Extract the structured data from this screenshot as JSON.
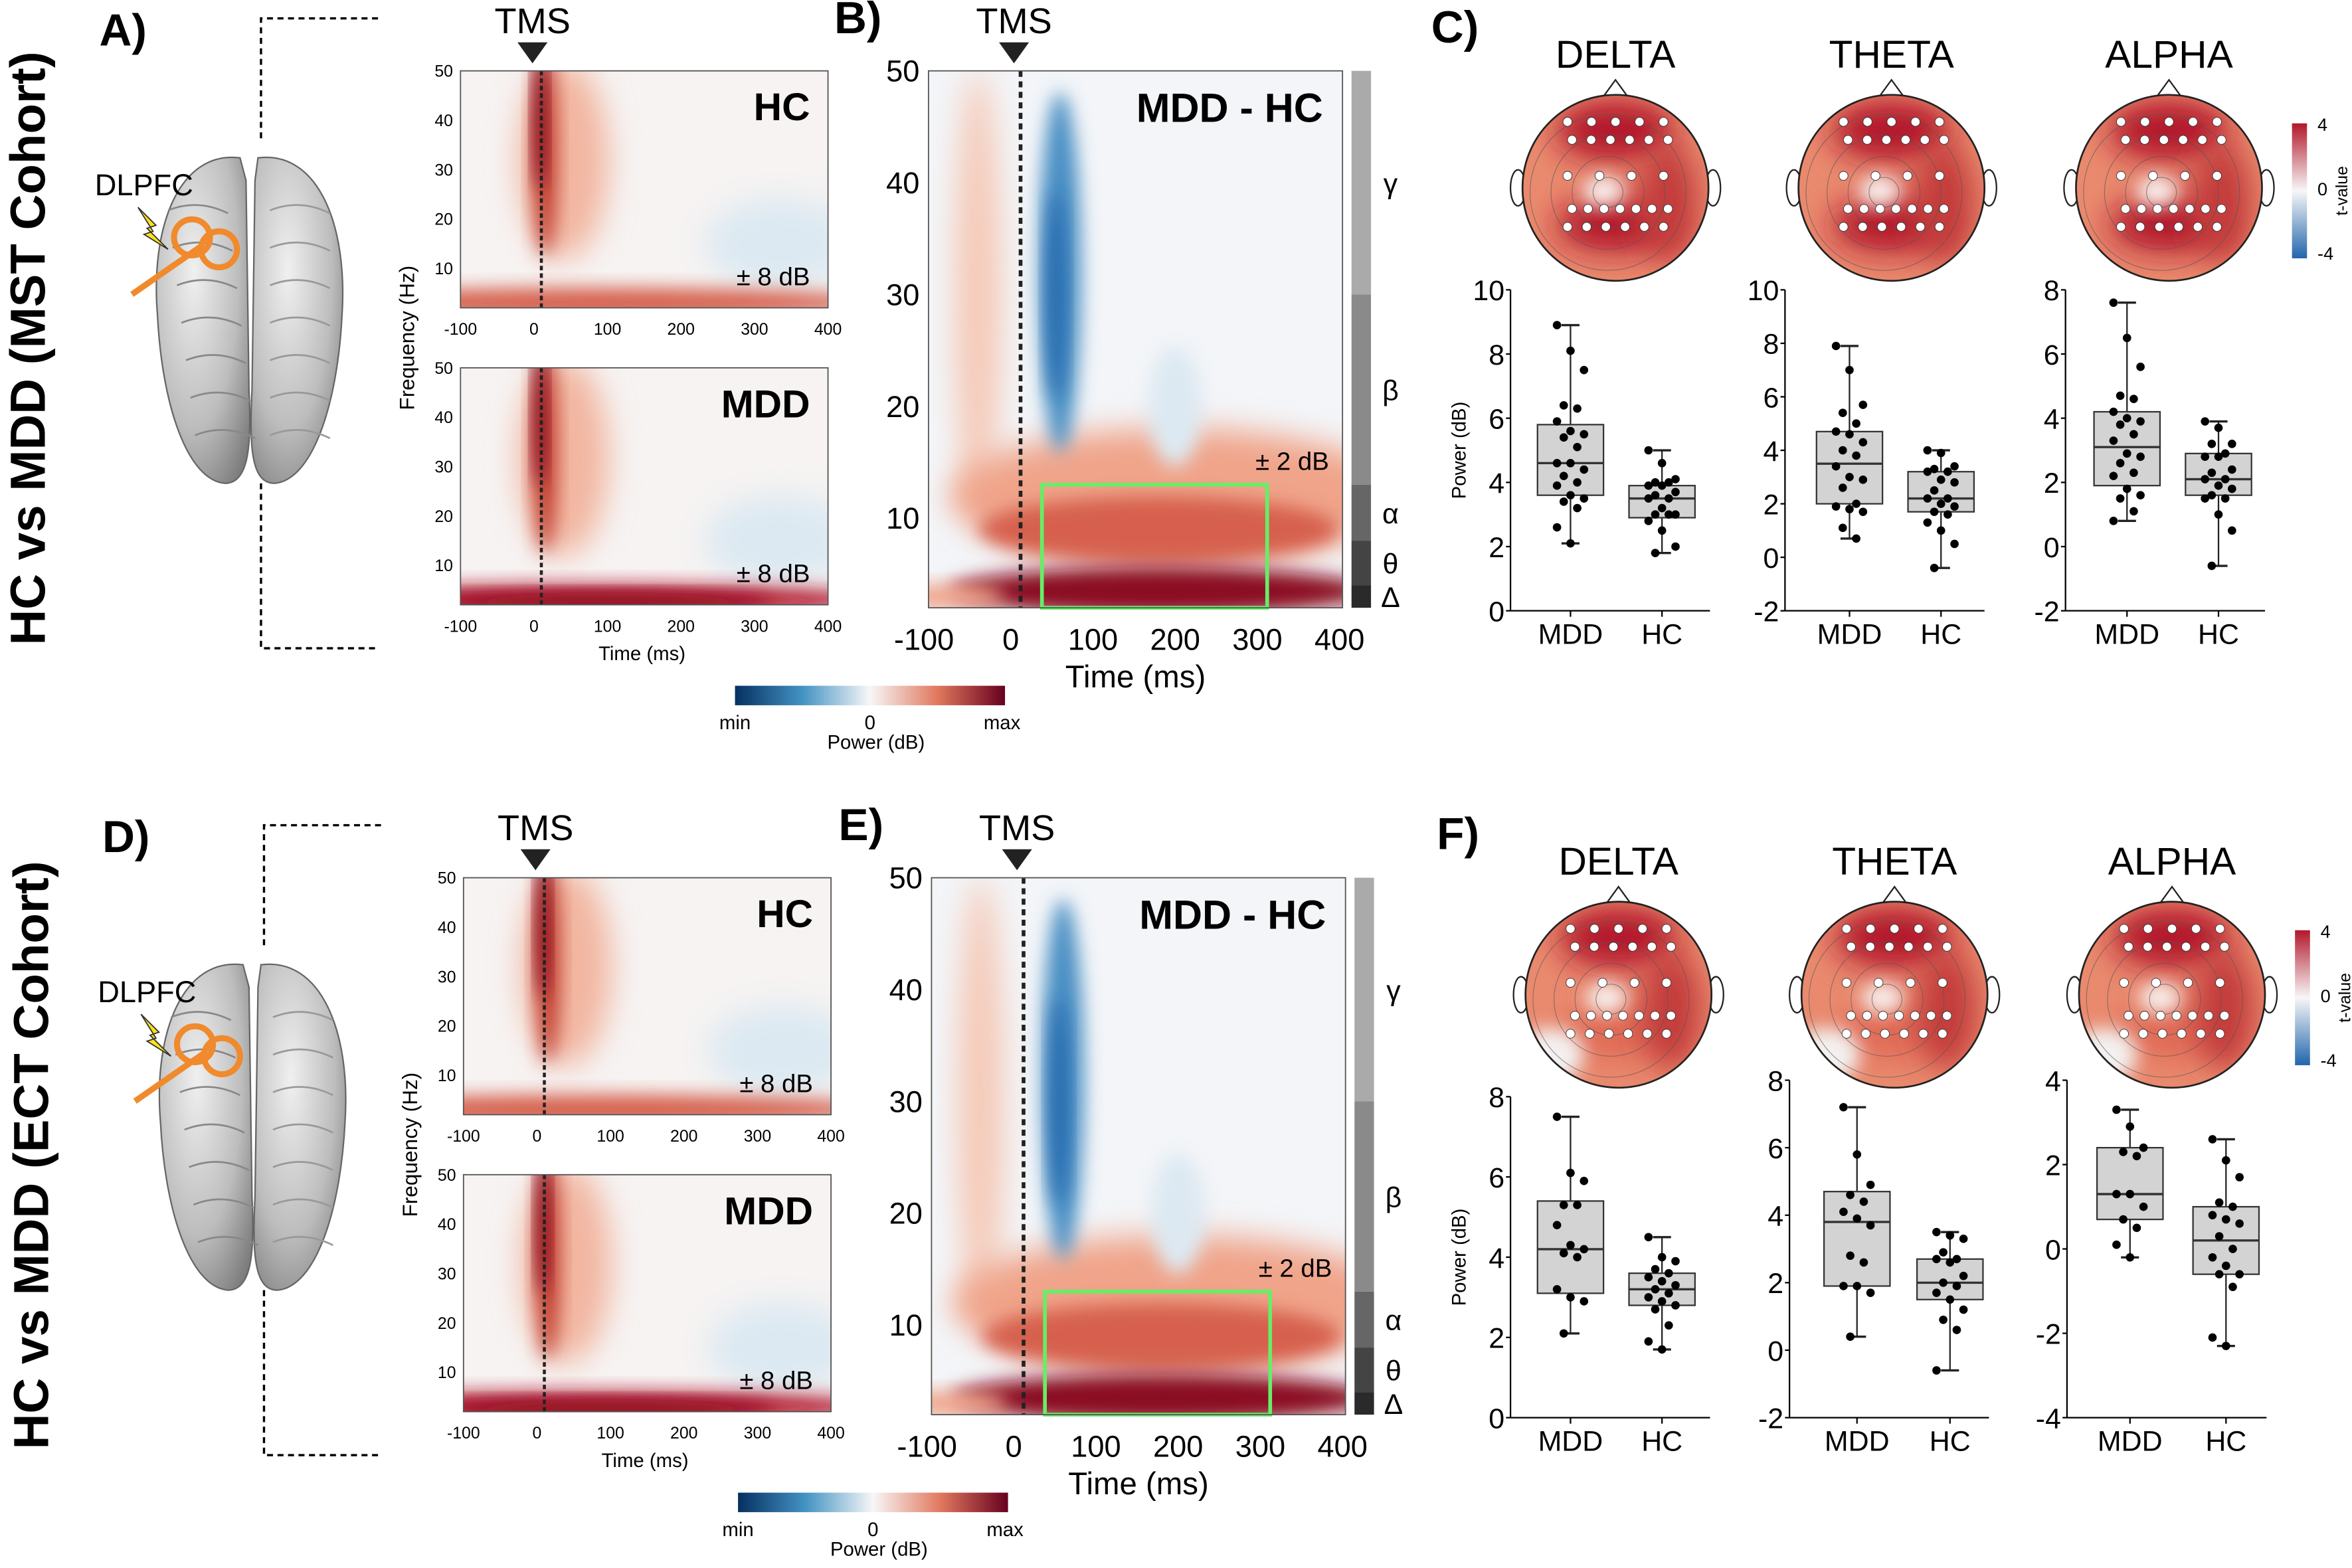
{
  "common": {
    "tms_label": "TMS",
    "freq_ticks": [
      10,
      20,
      30,
      40,
      50
    ],
    "time_ticks": [
      -100,
      0,
      100,
      200,
      300,
      400
    ],
    "freq_axis_label": "Frequency (Hz)",
    "time_axis_label": "Time (ms)",
    "bands": [
      "γ",
      "β",
      "α",
      "θ",
      "Δ"
    ],
    "power_colorbar": {
      "min": "min",
      "zero": "0",
      "max": "max",
      "label": "Power (dB)"
    },
    "topo_colorbar": {
      "ticks": [
        "4",
        "0",
        "-4"
      ],
      "label": "t-value"
    },
    "box_ylabel": "Power (dB)",
    "box_categories": [
      "MDD",
      "HC"
    ],
    "colors": {
      "heat_max": "#67001f",
      "heat_min": "#053061",
      "roi_box": "#66ee66",
      "box_fill": "#d3d3d3"
    }
  },
  "rows": [
    {
      "cohort_label": "HC vs MDD (MST Cohort)",
      "brain_panel": "A)",
      "diff_panel": "B)",
      "topo_panel": "C)",
      "dlpfc_label": "DLPFC",
      "small_maps": [
        {
          "title": "HC",
          "scale": "± 8 dB"
        },
        {
          "title": "MDD",
          "scale": "± 8 dB"
        }
      ],
      "diff_map": {
        "title": "MDD - HC",
        "scale": "± 2 dB"
      },
      "topo_titles": [
        "DELTA",
        "THETA",
        "ALPHA"
      ]
    },
    {
      "cohort_label": "HC vs MDD (ECT Cohort)",
      "brain_panel": "D)",
      "diff_panel": "E)",
      "topo_panel": "F)",
      "dlpfc_label": "DLPFC",
      "small_maps": [
        {
          "title": "HC",
          "scale": "± 8 dB"
        },
        {
          "title": "MDD",
          "scale": "± 8 dB"
        }
      ],
      "diff_map": {
        "title": "MDD - HC",
        "scale": "± 2 dB"
      },
      "topo_titles": [
        "DELTA",
        "THETA",
        "ALPHA"
      ]
    }
  ],
  "chart_data": [
    {
      "type": "box",
      "panel": "C",
      "band": "DELTA",
      "ylabel": "Power (dB)",
      "ylim": [
        0,
        10
      ],
      "yticks": [
        0,
        2,
        4,
        6,
        8,
        10
      ],
      "categories": [
        "MDD",
        "HC"
      ],
      "boxes": [
        {
          "min": 2.1,
          "q1": 3.6,
          "median": 4.6,
          "q3": 5.8,
          "max": 8.9,
          "points": [
            8.9,
            8.1,
            7.5,
            6.4,
            6.3,
            5.9,
            5.6,
            5.5,
            5.4,
            5.1,
            4.6,
            4.6,
            4.4,
            4.2,
            4.0,
            3.9,
            3.6,
            3.5,
            3.4,
            3.2,
            2.6,
            2.1
          ]
        },
        {
          "min": 1.8,
          "q1": 2.9,
          "median": 3.5,
          "q3": 3.9,
          "max": 5.0,
          "points": [
            5.0,
            4.6,
            4.1,
            4.0,
            4.0,
            3.9,
            3.9,
            3.7,
            3.6,
            3.5,
            3.5,
            3.2,
            3.0,
            3.0,
            3.0,
            2.8,
            2.5,
            2.0,
            1.8
          ]
        }
      ]
    },
    {
      "type": "box",
      "panel": "C",
      "band": "THETA",
      "ylim": [
        -2,
        10
      ],
      "yticks": [
        -2,
        0,
        2,
        4,
        6,
        8,
        10
      ],
      "categories": [
        "MDD",
        "HC"
      ],
      "boxes": [
        {
          "min": 0.7,
          "q1": 2.0,
          "median": 3.5,
          "q3": 4.7,
          "max": 7.9,
          "points": [
            7.9,
            7.0,
            5.7,
            5.4,
            5.0,
            4.7,
            4.6,
            4.3,
            4.0,
            3.8,
            3.4,
            3.0,
            2.9,
            2.6,
            2.0,
            1.9,
            1.8,
            1.7,
            1.1,
            0.7
          ]
        },
        {
          "min": -0.4,
          "q1": 1.7,
          "median": 2.2,
          "q3": 3.2,
          "max": 4.0,
          "points": [
            4.0,
            3.9,
            3.4,
            3.3,
            3.2,
            3.2,
            2.9,
            2.8,
            2.5,
            2.2,
            2.2,
            2.0,
            1.9,
            1.7,
            1.6,
            1.3,
            1.0,
            0.5,
            -0.4
          ]
        }
      ]
    },
    {
      "type": "box",
      "panel": "C",
      "band": "ALPHA",
      "ylim": [
        -2,
        8
      ],
      "yticks": [
        -2,
        0,
        2,
        4,
        6,
        8
      ],
      "categories": [
        "MDD",
        "HC"
      ],
      "boxes": [
        {
          "min": 0.8,
          "q1": 1.9,
          "median": 3.1,
          "q3": 4.2,
          "max": 7.6,
          "points": [
            7.6,
            6.5,
            5.6,
            4.7,
            4.6,
            4.2,
            4.0,
            3.9,
            3.8,
            3.5,
            3.3,
            2.9,
            2.8,
            2.6,
            2.3,
            2.2,
            1.8,
            1.6,
            1.5,
            1.1,
            0.8
          ]
        },
        {
          "min": -0.6,
          "q1": 1.6,
          "median": 2.1,
          "q3": 2.9,
          "max": 3.9,
          "points": [
            3.9,
            3.7,
            3.2,
            3.2,
            2.9,
            2.8,
            2.8,
            2.4,
            2.3,
            2.1,
            2.1,
            1.9,
            1.8,
            1.6,
            1.5,
            1.5,
            1.0,
            0.5,
            -0.6
          ]
        }
      ]
    },
    {
      "type": "box",
      "panel": "F",
      "band": "DELTA",
      "ylabel": "Power (dB)",
      "ylim": [
        0,
        8
      ],
      "yticks": [
        0,
        2,
        4,
        6,
        8
      ],
      "categories": [
        "MDD",
        "HC"
      ],
      "boxes": [
        {
          "min": 2.1,
          "q1": 3.1,
          "median": 4.2,
          "q3": 5.4,
          "max": 7.5,
          "points": [
            7.5,
            6.1,
            5.9,
            5.3,
            5.3,
            4.8,
            4.3,
            4.2,
            4.1,
            4.0,
            3.2,
            3.0,
            2.9,
            2.1
          ]
        },
        {
          "min": 1.7,
          "q1": 2.8,
          "median": 3.2,
          "q3": 3.6,
          "max": 4.5,
          "points": [
            4.5,
            4.0,
            3.9,
            3.7,
            3.6,
            3.5,
            3.4,
            3.3,
            3.2,
            3.1,
            3.0,
            2.9,
            2.8,
            2.7,
            2.3,
            1.9,
            1.7
          ]
        }
      ]
    },
    {
      "type": "box",
      "panel": "F",
      "band": "THETA",
      "ylim": [
        -2,
        8
      ],
      "yticks": [
        -2,
        0,
        2,
        4,
        6,
        8
      ],
      "categories": [
        "MDD",
        "HC"
      ],
      "boxes": [
        {
          "min": 0.4,
          "q1": 1.9,
          "median": 3.8,
          "q3": 4.7,
          "max": 7.2,
          "points": [
            7.2,
            5.8,
            4.9,
            4.6,
            4.4,
            4.1,
            3.9,
            3.7,
            2.8,
            2.6,
            1.9,
            1.9,
            1.7,
            0.4
          ]
        },
        {
          "min": -0.6,
          "q1": 1.5,
          "median": 2.0,
          "q3": 2.7,
          "max": 3.5,
          "points": [
            3.5,
            3.4,
            3.3,
            2.9,
            2.7,
            2.7,
            2.6,
            2.2,
            2.0,
            1.9,
            1.7,
            1.5,
            1.2,
            0.9,
            0.6,
            -0.6
          ]
        }
      ]
    },
    {
      "type": "box",
      "panel": "F",
      "band": "ALPHA",
      "ylim": [
        -4,
        4
      ],
      "yticks": [
        -4,
        -2,
        0,
        2,
        4
      ],
      "categories": [
        "MDD",
        "HC"
      ],
      "boxes": [
        {
          "min": -0.2,
          "q1": 0.7,
          "median": 1.3,
          "q3": 2.4,
          "max": 3.3,
          "points": [
            3.3,
            2.9,
            2.4,
            2.3,
            2.2,
            1.3,
            1.3,
            1.0,
            0.7,
            0.5,
            0.1,
            -0.2
          ]
        },
        {
          "min": -2.3,
          "q1": -0.6,
          "median": 0.2,
          "q3": 1.0,
          "max": 2.6,
          "points": [
            2.6,
            2.1,
            1.7,
            1.1,
            1.0,
            0.8,
            0.7,
            0.6,
            0.3,
            0.0,
            -0.2,
            -0.4,
            -0.6,
            -0.6,
            -0.9,
            -2.1,
            -2.3
          ]
        }
      ]
    }
  ]
}
